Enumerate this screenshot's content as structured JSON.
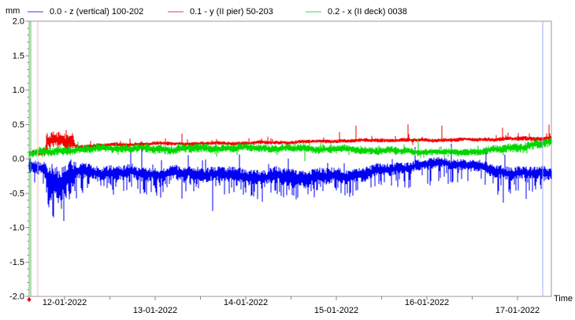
{
  "chart_data": {
    "type": "line",
    "title": "",
    "unit_label": "mm",
    "x_axis_label": "Time",
    "ylim": [
      -2.0,
      2.0
    ],
    "y_major_step": 0.5,
    "y_minor_step": 0.1,
    "grid": false,
    "legend_position": "top",
    "x_tick_labels": [
      "12-01-2022",
      "13-01-2022",
      "14-01-2022",
      "15-01-2022",
      "16-01-2022",
      "17-01-2022"
    ],
    "x_range_days": [
      -0.391,
      5.374
    ],
    "x_minor_tick_days": [
      0.5,
      1.5,
      2.5,
      3.5,
      4.5
    ],
    "series": [
      {
        "name": "0.0 - z (vertical) 100-202",
        "color": "#0000f5",
        "legend_color": "#9a9af0",
        "trend_t_mean_amp": [
          [
            -0.391,
            -0.11,
            0.09
          ],
          [
            -0.22,
            -0.13,
            0.1
          ],
          [
            -0.19,
            -0.32,
            0.28
          ],
          [
            0.09,
            -0.32,
            0.28
          ],
          [
            0.12,
            -0.18,
            0.12
          ],
          [
            0.5,
            -0.2,
            0.11
          ],
          [
            1.0,
            -0.22,
            0.11
          ],
          [
            1.5,
            -0.21,
            0.11
          ],
          [
            2.0,
            -0.25,
            0.12
          ],
          [
            2.5,
            -0.27,
            0.13
          ],
          [
            3.0,
            -0.26,
            0.12
          ],
          [
            3.3,
            -0.22,
            0.11
          ],
          [
            3.7,
            -0.13,
            0.09
          ],
          [
            4.2,
            -0.05,
            0.08
          ],
          [
            4.5,
            -0.1,
            0.09
          ],
          [
            4.8,
            -0.18,
            0.1
          ],
          [
            5.1,
            -0.22,
            0.1
          ],
          [
            5.374,
            -0.2,
            0.1
          ]
        ],
        "noise": {
          "p": 0.3,
          "len": 0.06,
          "var": 0.18,
          "rare_p": 0.018,
          "rare_len": 0.25,
          "rare_var": 0.22,
          "bias": -0.85
        }
      },
      {
        "name": "0.1 - y (II pier) 50-203",
        "color": "#f50000",
        "legend_color": "#ff9a9a",
        "trend_t_mean_amp": [
          [
            -0.391,
            0.08,
            0.04
          ],
          [
            -0.22,
            0.1,
            0.05
          ],
          [
            -0.19,
            0.25,
            0.12
          ],
          [
            0.09,
            0.25,
            0.12
          ],
          [
            0.12,
            0.17,
            0.04
          ],
          [
            0.5,
            0.2,
            0.035
          ],
          [
            1.0,
            0.22,
            0.03
          ],
          [
            1.5,
            0.22,
            0.03
          ],
          [
            2.0,
            0.23,
            0.03
          ],
          [
            2.5,
            0.24,
            0.03
          ],
          [
            3.0,
            0.26,
            0.03
          ],
          [
            3.5,
            0.27,
            0.03
          ],
          [
            4.0,
            0.27,
            0.03
          ],
          [
            4.5,
            0.28,
            0.03
          ],
          [
            5.0,
            0.29,
            0.035
          ],
          [
            5.374,
            0.3,
            0.04
          ]
        ],
        "noise": {
          "p": 0.06,
          "len": 0.02,
          "var": 0.05,
          "rare_p": 0.012,
          "rare_len": 0.1,
          "rare_var": 0.12,
          "bias": 0.9
        }
      },
      {
        "name": "0.2 - x (II deck) 0038",
        "color": "#00d600",
        "legend_color": "#9af09a",
        "trend_t_mean_amp": [
          [
            -0.391,
            0.07,
            0.06
          ],
          [
            0.0,
            0.12,
            0.07
          ],
          [
            0.5,
            0.16,
            0.06
          ],
          [
            1.0,
            0.14,
            0.07
          ],
          [
            1.5,
            0.15,
            0.07
          ],
          [
            2.0,
            0.16,
            0.06
          ],
          [
            2.5,
            0.15,
            0.06
          ],
          [
            3.0,
            0.14,
            0.06
          ],
          [
            3.5,
            0.12,
            0.06
          ],
          [
            4.0,
            0.1,
            0.05
          ],
          [
            4.3,
            0.09,
            0.05
          ],
          [
            4.7,
            0.12,
            0.06
          ],
          [
            5.0,
            0.17,
            0.07
          ],
          [
            5.374,
            0.24,
            0.08
          ]
        ],
        "noise": {
          "p": 0.08,
          "len": 0.02,
          "var": 0.04,
          "rare_p": 0.008,
          "rare_len": 0.09,
          "rare_var": 0.1,
          "bias": 0.2
        }
      }
    ],
    "cursors": [
      {
        "t": -0.374,
        "color": "#55c555",
        "name": "time-cursor-green"
      },
      {
        "t": -0.296,
        "color": "#ffb4b4",
        "name": "time-cursor-pink"
      },
      {
        "t": 5.278,
        "color": "#9daef0",
        "name": "time-cursor-blue"
      }
    ],
    "start_marker": {
      "t": -0.391,
      "color": "#e60000"
    }
  },
  "legend": {
    "unit_label": "mm",
    "items": [
      {
        "label": "0.0 - z (vertical) 100-202"
      },
      {
        "label": "0.1 - y (II pier) 50-203"
      },
      {
        "label": "0.2 - x (II deck) 0038"
      }
    ]
  },
  "axis": {
    "time_label": "Time"
  },
  "colors": {
    "axis_line": "#9a9a9a",
    "tick": "#8a8a8a",
    "text": "#000000"
  }
}
